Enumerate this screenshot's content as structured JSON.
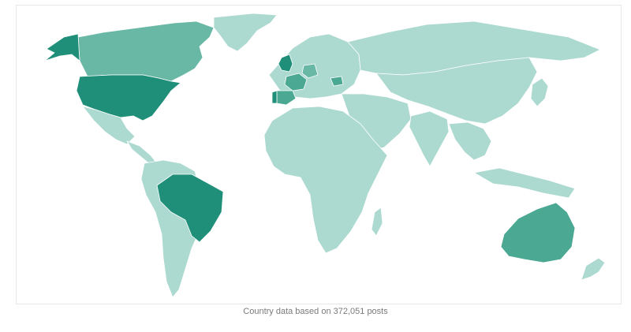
{
  "map": {
    "caption": "Country data based on 372,051 posts",
    "colors": {
      "lowest": "#acd9d0",
      "low": "#8fcbbd",
      "mid": "#69b8a6",
      "high": "#4aa893",
      "highest": "#1f8f79"
    },
    "countries": [
      {
        "id": "greenland",
        "level": "lowest"
      },
      {
        "id": "canada",
        "level": "mid"
      },
      {
        "id": "alaska",
        "level": "highest"
      },
      {
        "id": "usa",
        "level": "highest"
      },
      {
        "id": "mexico",
        "level": "lowest"
      },
      {
        "id": "central-america",
        "level": "lowest"
      },
      {
        "id": "brazil",
        "level": "highest"
      },
      {
        "id": "south-america-rest",
        "level": "lowest"
      },
      {
        "id": "europe",
        "level": "lowest"
      },
      {
        "id": "uk",
        "level": "highest"
      },
      {
        "id": "france",
        "level": "high"
      },
      {
        "id": "spain",
        "level": "high"
      },
      {
        "id": "portugal",
        "level": "highest"
      },
      {
        "id": "germany",
        "level": "mid"
      },
      {
        "id": "romania",
        "level": "high"
      },
      {
        "id": "russia",
        "level": "lowest"
      },
      {
        "id": "asia",
        "level": "lowest"
      },
      {
        "id": "middle-east",
        "level": "lowest"
      },
      {
        "id": "india",
        "level": "lowest"
      },
      {
        "id": "africa",
        "level": "lowest"
      },
      {
        "id": "madagascar",
        "level": "lowest"
      },
      {
        "id": "southeast-asia",
        "level": "lowest"
      },
      {
        "id": "indonesia",
        "level": "lowest"
      },
      {
        "id": "japan",
        "level": "lowest"
      },
      {
        "id": "australia",
        "level": "high"
      },
      {
        "id": "new-zealand",
        "level": "lowest"
      }
    ]
  }
}
